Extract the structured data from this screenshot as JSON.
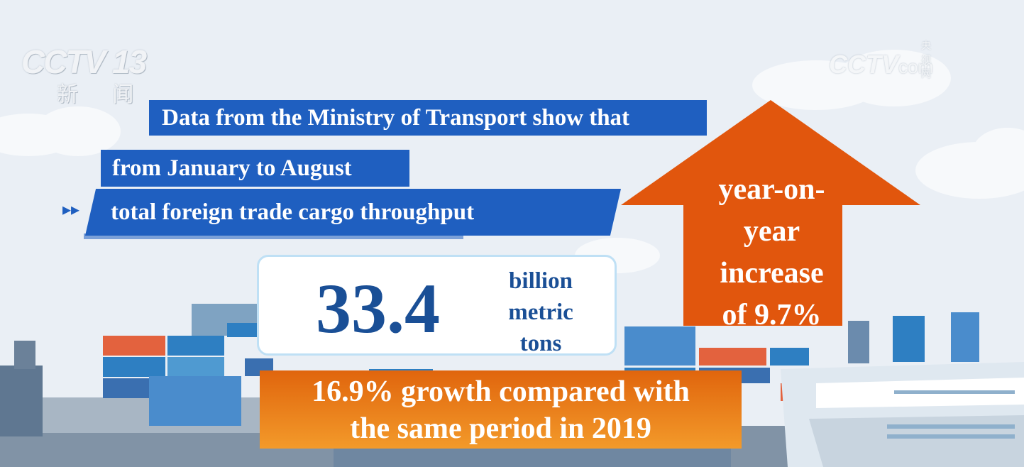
{
  "watermark": {
    "left_logo": "CCTV",
    "left_channel": "13",
    "left_sub": "新 闻",
    "right_logo": "CCTV",
    "right_small": "央视网",
    "right_suffix": "com"
  },
  "headline": {
    "line1": "Data from the Ministry of Transport show that",
    "line2": "from January to August",
    "line3": "total foreign trade cargo throughput"
  },
  "figure": {
    "value": "33.4",
    "unit_lines": [
      "billion",
      "metric",
      "tons"
    ]
  },
  "arrow": {
    "lines": [
      "year-on-",
      "year",
      "increase",
      "of 9.7%"
    ]
  },
  "growth": {
    "line1": "16.9% growth compared with",
    "line2": "the same period in 2019"
  },
  "colors": {
    "banner_blue": "#1f5fc0",
    "arrow_orange": "#e1560d",
    "number_blue": "#1a4f96",
    "growth_orange_top": "#e0650d",
    "growth_orange_bottom": "#f39a2a"
  }
}
